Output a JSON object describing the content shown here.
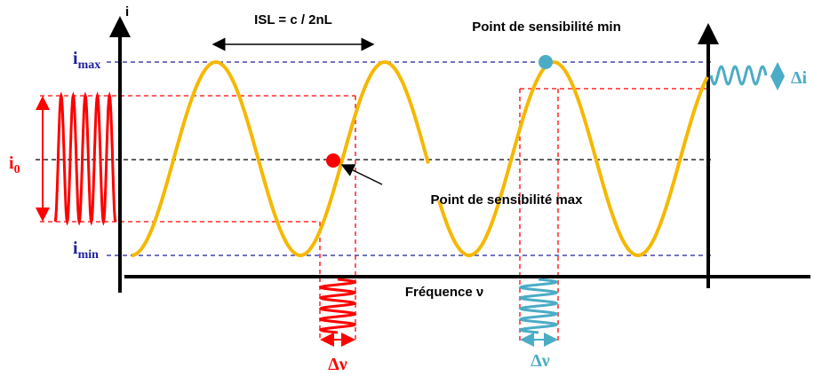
{
  "axes": {
    "y_label": "i",
    "x_label": "Fréquence ν"
  },
  "levels": {
    "max": {
      "main": "i",
      "sub": "max"
    },
    "zero": {
      "main": "i",
      "sub": "0"
    },
    "min": {
      "main": "i",
      "sub": "min"
    }
  },
  "annotations": {
    "isl": "ISL = c / 2nL",
    "min_point": "Point de sensibilité min",
    "max_point": "Point de sensibilité max",
    "delta_nu_red": "Δν",
    "delta_nu_blue": "Δν",
    "delta_i": "Δi"
  }
}
